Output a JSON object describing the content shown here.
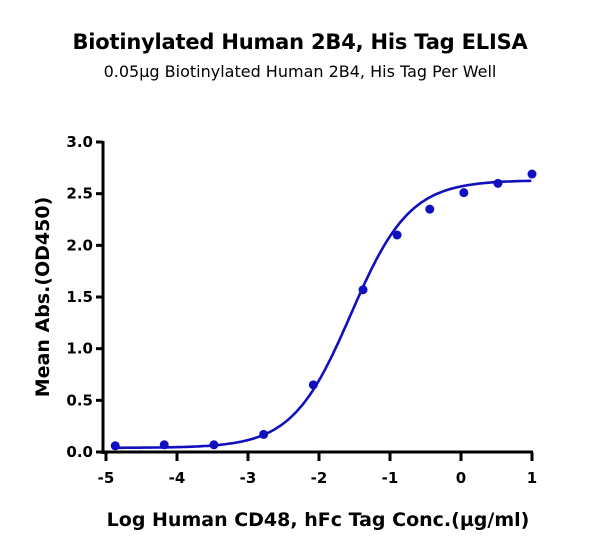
{
  "chart_data": {
    "type": "scatter",
    "title": "Biotinylated Human 2B4, His Tag ELISA",
    "subtitle": "0.05µg Biotinylated Human 2B4, His Tag Per Well",
    "xlabel": "Log Human CD48, hFc Tag Conc.(µg/ml)",
    "ylabel": "Mean Abs.(OD450)",
    "xlim": [
      -5,
      1
    ],
    "ylim": [
      0,
      3.0
    ],
    "x_ticks": [
      "-5",
      "-4",
      "-3",
      "-2",
      "-1",
      "0",
      "1"
    ],
    "y_ticks": [
      "0.0",
      "0.5",
      "1.0",
      "1.5",
      "2.0",
      "2.5",
      "3.0"
    ],
    "grid": false,
    "legend": null,
    "series": [
      {
        "name": "Mean Abs.(OD450)",
        "color": "#1010c0",
        "fit": "4-parameter logistic",
        "x": [
          -4.87,
          -4.18,
          -3.48,
          -2.78,
          -2.08,
          -1.38,
          -0.9,
          -0.44,
          0.04,
          0.52,
          1.0
        ],
        "y": [
          0.06,
          0.07,
          0.07,
          0.17,
          0.65,
          1.57,
          2.1,
          2.35,
          2.51,
          2.6,
          2.69
        ]
      }
    ]
  }
}
